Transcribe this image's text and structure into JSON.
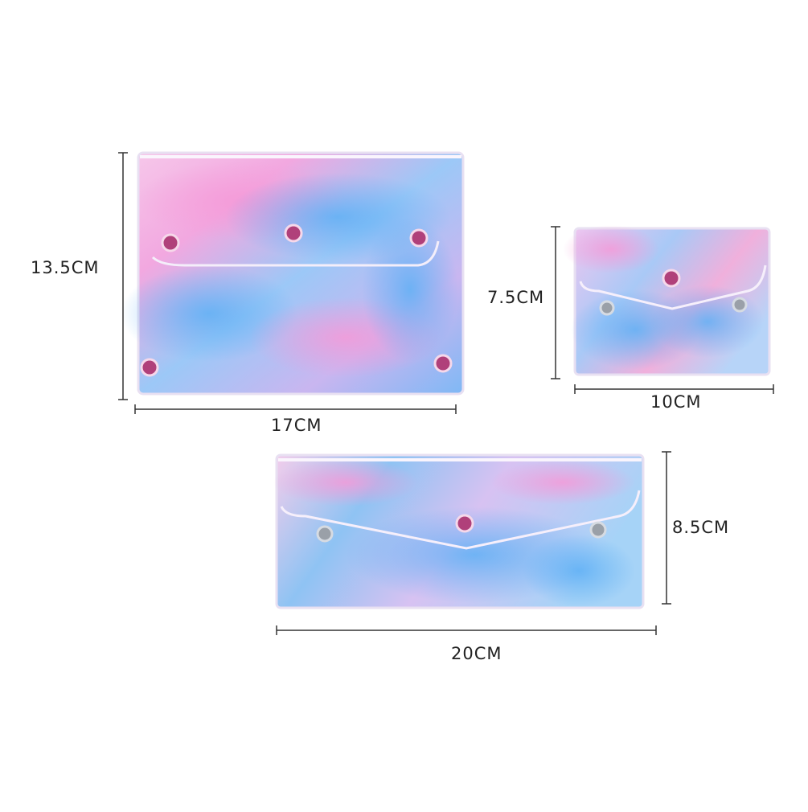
{
  "products": [
    {
      "name": "large-pouch",
      "width_label": "17CM",
      "height_label": "13.5CM"
    },
    {
      "name": "small-pouch",
      "width_label": "10CM",
      "height_label": "7.5CM"
    },
    {
      "name": "long-pouch",
      "width_label": "20CM",
      "height_label": "8.5CM"
    }
  ],
  "colors": {
    "background": "#ffffff",
    "holo_pink": "#f2a8e0",
    "holo_blue": "#7fb8f5",
    "holo_lilac": "#c9b6f0",
    "snap_magenta": "#b0407a",
    "snap_silver": "#9aa0a8",
    "dimension_line": "#333333"
  }
}
